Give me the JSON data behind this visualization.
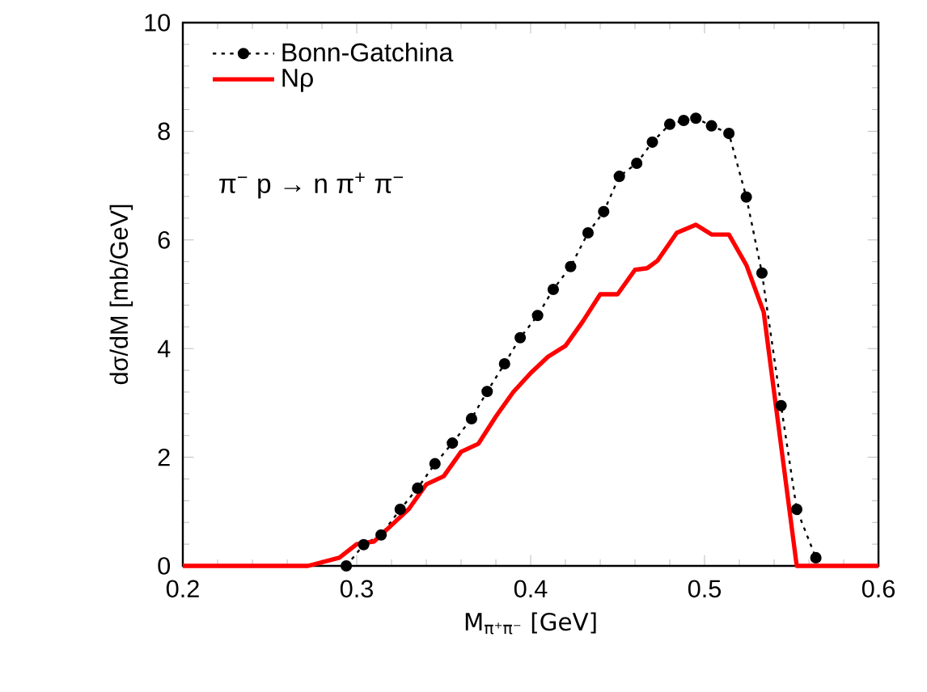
{
  "chart_data": {
    "type": "line",
    "xlabel": "M$_{π⁺π⁻}$ [GeV]",
    "ylabel": "dσ/dM [mb/GeV]",
    "xlim": [
      0.2,
      0.6
    ],
    "ylim": [
      0,
      10
    ],
    "xticks": [
      0.2,
      0.3,
      0.4,
      0.5,
      0.6
    ],
    "yticks": [
      0,
      2,
      4,
      6,
      8,
      10
    ],
    "legend": "top left",
    "grid": false,
    "annotations": [
      "π$^{−}$ p → n π$^{+}$ π$^{−}$"
    ],
    "series": [
      {
        "name": "Bonn-Gatchina",
        "color": "#000000",
        "marker": "circle",
        "line_style": "dotted",
        "x": [
          0.294,
          0.304,
          0.314,
          0.325,
          0.335,
          0.345,
          0.355,
          0.366,
          0.375,
          0.385,
          0.394,
          0.404,
          0.413,
          0.423,
          0.433,
          0.442,
          0.451,
          0.461,
          0.47,
          0.48,
          0.488,
          0.495,
          0.504,
          0.514,
          0.524,
          0.533,
          0.544,
          0.553,
          0.564
        ],
        "values": [
          0,
          0.39,
          0.57,
          1.04,
          1.43,
          1.88,
          2.26,
          2.71,
          3.21,
          3.72,
          4.2,
          4.61,
          5.09,
          5.51,
          6.13,
          6.52,
          7.17,
          7.41,
          7.8,
          8.13,
          8.2,
          8.24,
          8.1,
          7.96,
          6.79,
          5.39,
          2.95,
          1.04,
          0.15
        ]
      },
      {
        "name": "Nρ",
        "color": "#ff0000",
        "marker": "none",
        "line_style": "solid",
        "x": [
          0.2,
          0.272,
          0.29,
          0.3,
          0.31,
          0.32,
          0.33,
          0.34,
          0.35,
          0.36,
          0.37,
          0.38,
          0.39,
          0.4,
          0.41,
          0.42,
          0.43,
          0.44,
          0.45,
          0.46,
          0.467,
          0.473,
          0.484,
          0.495,
          0.504,
          0.514,
          0.524,
          0.534,
          0.553,
          0.6
        ],
        "values": [
          0,
          0,
          0.15,
          0.4,
          0.45,
          0.75,
          1.05,
          1.5,
          1.65,
          2.1,
          2.25,
          2.75,
          3.2,
          3.55,
          3.85,
          4.05,
          4.5,
          5.0,
          5.0,
          5.45,
          5.48,
          5.62,
          6.13,
          6.28,
          6.1,
          6.1,
          5.54,
          4.67,
          0,
          0
        ]
      }
    ]
  }
}
